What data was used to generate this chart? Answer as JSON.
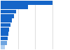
{
  "values": [
    15.0,
    8.0,
    4.5,
    3.8,
    3.2,
    2.8,
    2.5,
    2.2,
    2.0,
    1.8,
    1.2
  ],
  "bar_colors": [
    "#1565c8",
    "#1565c8",
    "#1565c8",
    "#1565c8",
    "#1565c8",
    "#1565c8",
    "#1565c8",
    "#1565c8",
    "#1565c8",
    "#6da4e0",
    "#b0cff0"
  ],
  "background_color": "#ffffff",
  "xlim": [
    0,
    20
  ],
  "grid_color": "#d0d0d0"
}
